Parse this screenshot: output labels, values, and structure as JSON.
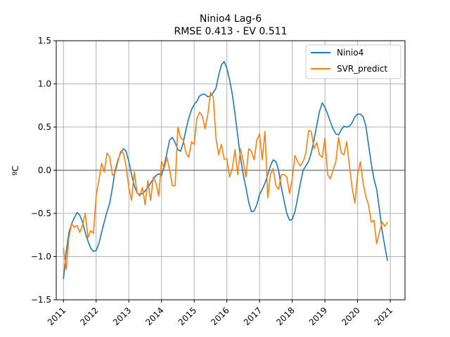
{
  "chart_data": {
    "type": "line",
    "title": "Ninio4 Lag-6",
    "subtitle": "RMSE 0.413 - EV 0.511",
    "xlabel": "",
    "ylabel": "ºC",
    "xlim": [
      2010.78,
      2021.45
    ],
    "ylim": [
      -1.5,
      1.5
    ],
    "xticks": [
      2011,
      2012,
      2013,
      2014,
      2015,
      2016,
      2017,
      2018,
      2019,
      2020,
      2021
    ],
    "yticks": [
      -1.5,
      -1.0,
      -0.5,
      0.0,
      0.5,
      1.0,
      1.5
    ],
    "ytick_labels": [
      "−1.5",
      "−1.0",
      "−0.5",
      "0.0",
      "0.5",
      "1.0",
      "1.5"
    ],
    "grid": true,
    "zero_line": 0.0,
    "legend_position": "top-right",
    "series": [
      {
        "name": "Ninio4",
        "color": "#1f77b4",
        "x": [
          2011.0,
          2011.083,
          2011.167,
          2011.25,
          2011.333,
          2011.417,
          2011.5,
          2011.583,
          2011.667,
          2011.75,
          2011.833,
          2011.917,
          2012.0,
          2012.083,
          2012.167,
          2012.25,
          2012.333,
          2012.417,
          2012.5,
          2012.583,
          2012.667,
          2012.75,
          2012.833,
          2012.917,
          2013.0,
          2013.083,
          2013.167,
          2013.25,
          2013.333,
          2013.417,
          2013.5,
          2013.583,
          2013.667,
          2013.75,
          2013.833,
          2013.917,
          2014.0,
          2014.083,
          2014.167,
          2014.25,
          2014.333,
          2014.417,
          2014.5,
          2014.583,
          2014.667,
          2014.75,
          2014.833,
          2014.917,
          2015.0,
          2015.083,
          2015.167,
          2015.25,
          2015.333,
          2015.417,
          2015.5,
          2015.583,
          2015.667,
          2015.75,
          2015.833,
          2015.917,
          2016.0,
          2016.083,
          2016.167,
          2016.25,
          2016.333,
          2016.417,
          2016.5,
          2016.583,
          2016.667,
          2016.75,
          2016.833,
          2016.917,
          2017.0,
          2017.083,
          2017.167,
          2017.25,
          2017.333,
          2017.417,
          2017.5,
          2017.583,
          2017.667,
          2017.75,
          2017.833,
          2017.917,
          2018.0,
          2018.083,
          2018.167,
          2018.25,
          2018.333,
          2018.417,
          2018.5,
          2018.583,
          2018.667,
          2018.75,
          2018.833,
          2018.917,
          2019.0,
          2019.083,
          2019.167,
          2019.25,
          2019.333,
          2019.417,
          2019.5,
          2019.583,
          2019.667,
          2019.75,
          2019.833,
          2019.917,
          2020.0,
          2020.083,
          2020.167,
          2020.25,
          2020.333,
          2020.417,
          2020.5,
          2020.583,
          2020.667,
          2020.75,
          2020.833,
          2020.917
        ],
        "values": [
          -1.26,
          -0.95,
          -0.72,
          -0.62,
          -0.55,
          -0.49,
          -0.52,
          -0.6,
          -0.72,
          -0.82,
          -0.9,
          -0.94,
          -0.93,
          -0.85,
          -0.72,
          -0.6,
          -0.48,
          -0.38,
          -0.2,
          0.0,
          0.12,
          0.2,
          0.25,
          0.22,
          0.1,
          -0.05,
          -0.18,
          -0.26,
          -0.28,
          -0.27,
          -0.24,
          -0.2,
          -0.15,
          -0.1,
          -0.06,
          -0.04,
          -0.06,
          0.05,
          0.2,
          0.35,
          0.38,
          0.32,
          0.24,
          0.22,
          0.32,
          0.47,
          0.6,
          0.7,
          0.76,
          0.8,
          0.86,
          0.88,
          0.88,
          0.85,
          0.86,
          0.9,
          0.95,
          1.1,
          1.22,
          1.26,
          1.18,
          1.05,
          0.88,
          0.65,
          0.4,
          0.15,
          -0.05,
          -0.2,
          -0.37,
          -0.48,
          -0.47,
          -0.4,
          -0.28,
          -0.22,
          -0.15,
          -0.05,
          0.05,
          0.12,
          0.1,
          0.0,
          -0.2,
          -0.35,
          -0.5,
          -0.58,
          -0.57,
          -0.48,
          -0.32,
          -0.15,
          0.0,
          0.05,
          0.1,
          0.2,
          0.35,
          0.52,
          0.68,
          0.78,
          0.73,
          0.65,
          0.56,
          0.48,
          0.42,
          0.41,
          0.47,
          0.51,
          0.5,
          0.51,
          0.55,
          0.62,
          0.65,
          0.65,
          0.62,
          0.52,
          0.3,
          0.08,
          -0.1,
          -0.22,
          -0.45,
          -0.7,
          -0.88,
          -1.05
        ]
      },
      {
        "name": "SVR_predict",
        "color": "#ff7f0e",
        "x": [
          2011.0,
          2011.083,
          2011.167,
          2011.25,
          2011.333,
          2011.417,
          2011.5,
          2011.583,
          2011.667,
          2011.75,
          2011.833,
          2011.917,
          2012.0,
          2012.083,
          2012.167,
          2012.25,
          2012.333,
          2012.417,
          2012.5,
          2012.583,
          2012.667,
          2012.75,
          2012.833,
          2012.917,
          2013.0,
          2013.083,
          2013.167,
          2013.25,
          2013.333,
          2013.417,
          2013.5,
          2013.583,
          2013.667,
          2013.75,
          2013.833,
          2013.917,
          2014.0,
          2014.083,
          2014.167,
          2014.25,
          2014.333,
          2014.417,
          2014.5,
          2014.583,
          2014.667,
          2014.75,
          2014.833,
          2014.917,
          2015.0,
          2015.083,
          2015.167,
          2015.25,
          2015.333,
          2015.417,
          2015.5,
          2015.583,
          2015.667,
          2015.75,
          2015.833,
          2015.917,
          2016.0,
          2016.083,
          2016.167,
          2016.25,
          2016.333,
          2016.417,
          2016.5,
          2016.583,
          2016.667,
          2016.75,
          2016.833,
          2016.917,
          2017.0,
          2017.083,
          2017.167,
          2017.25,
          2017.333,
          2017.417,
          2017.5,
          2017.583,
          2017.667,
          2017.75,
          2017.833,
          2017.917,
          2018.0,
          2018.083,
          2018.167,
          2018.25,
          2018.333,
          2018.417,
          2018.5,
          2018.583,
          2018.667,
          2018.75,
          2018.833,
          2018.917,
          2019.0,
          2019.083,
          2019.167,
          2019.25,
          2019.333,
          2019.417,
          2019.5,
          2019.583,
          2019.667,
          2019.75,
          2019.833,
          2019.917,
          2020.0,
          2020.083,
          2020.167,
          2020.25,
          2020.333,
          2020.417,
          2020.5,
          2020.583,
          2020.667,
          2020.75,
          2020.833,
          2020.917
        ],
        "values": [
          -0.9,
          -1.15,
          -0.78,
          -0.62,
          -0.66,
          -0.64,
          -0.72,
          -0.64,
          -0.5,
          -0.78,
          -0.7,
          -0.73,
          -0.3,
          -0.12,
          0.08,
          -0.02,
          0.2,
          0.15,
          -0.06,
          -0.03,
          0.1,
          0.22,
          0.2,
          0.05,
          -0.2,
          -0.35,
          -0.02,
          -0.25,
          -0.3,
          -0.2,
          -0.4,
          -0.12,
          -0.35,
          -0.08,
          -0.15,
          -0.3,
          0.1,
          0.02,
          0.15,
          0.0,
          -0.18,
          -0.18,
          0.5,
          0.38,
          0.35,
          0.2,
          0.15,
          0.33,
          0.3,
          0.6,
          0.67,
          0.63,
          0.48,
          0.65,
          0.9,
          0.85,
          0.37,
          0.18,
          0.3,
          0.13,
          0.13,
          -0.08,
          0.02,
          0.24,
          -0.05,
          0.25,
          0.1,
          -0.08,
          0.25,
          0.22,
          0.12,
          0.35,
          0.42,
          0.12,
          0.45,
          -0.32,
          -0.05,
          0.02,
          -0.18,
          -0.22,
          -0.05,
          -0.05,
          -0.08,
          -0.27,
          -0.1,
          0.17,
          0.1,
          0.05,
          0.1,
          0.2,
          0.46,
          0.45,
          0.25,
          0.32,
          0.18,
          0.15,
          0.37,
          -0.05,
          -0.1,
          0.0,
          0.1,
          0.38,
          0.2,
          0.18,
          0.33,
          0.05,
          -0.2,
          -0.38,
          -0.05,
          0.1,
          -0.15,
          -0.3,
          -0.4,
          -0.6,
          -0.58,
          -0.85,
          -0.72,
          -0.6,
          -0.65,
          -0.6
        ]
      }
    ]
  }
}
